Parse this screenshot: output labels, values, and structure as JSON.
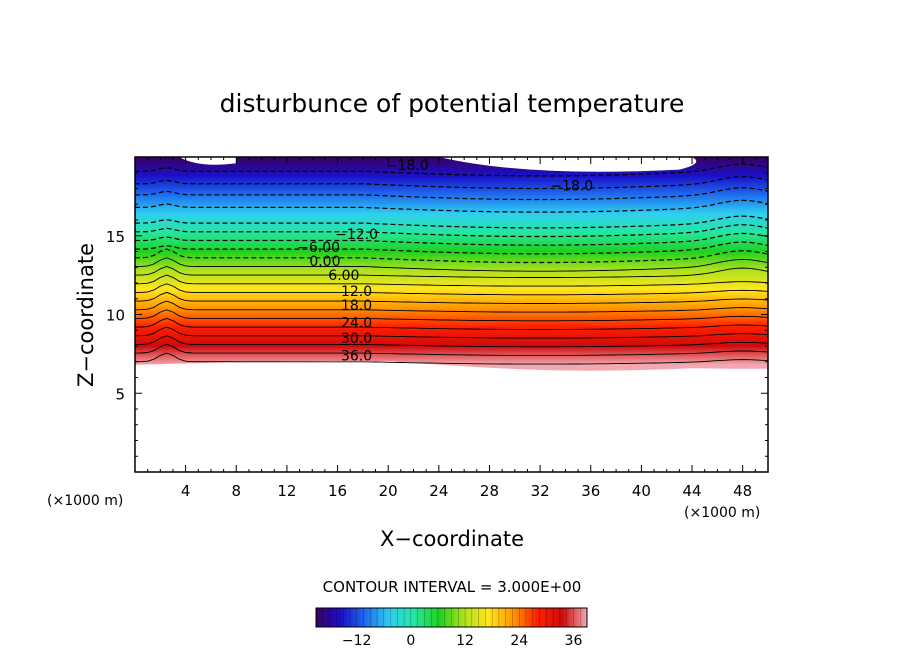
{
  "chart_data": {
    "type": "heatmap",
    "title": "disturbunce of potential temperature",
    "xlabel": "X−coordinate",
    "ylabel": "Z−coordinate",
    "x_unit_label": "(×1000 m)",
    "y_unit_label": "(×1000 m)",
    "xlim": [
      0,
      50
    ],
    "ylim": [
      0,
      20
    ],
    "x_ticks": [
      4,
      8,
      12,
      16,
      20,
      24,
      28,
      32,
      36,
      40,
      44,
      48
    ],
    "y_ticks": [
      5,
      10,
      15
    ],
    "contour_interval_text": "CONTOUR INTERVAL = 3.000E+00",
    "value_range": [
      -21,
      39
    ],
    "colorbar_ticks": [
      -12,
      0,
      12,
      24,
      36
    ],
    "colormap_stops": [
      "#3a0060",
      "#1a10c8",
      "#1e6cf0",
      "#2ecff0",
      "#25e6a0",
      "#1ed21e",
      "#aee11e",
      "#ffe61e",
      "#ff9600",
      "#ff1e00",
      "#cf0a0a",
      "#f2a8b0"
    ],
    "data_bottom_z": 6.8,
    "contour_labels": [
      {
        "text": "−18.0",
        "x": 21.5,
        "z": 19.5
      },
      {
        "text": "−18.0",
        "x": 34.5,
        "z": 18.2
      },
      {
        "text": "−12.0",
        "x": 17.5,
        "z": 15.1
      },
      {
        "text": "−6.00",
        "x": 14.5,
        "z": 14.3
      },
      {
        "text": "0.00",
        "x": 15.0,
        "z": 13.4
      },
      {
        "text": "6.00",
        "x": 16.5,
        "z": 12.5
      },
      {
        "text": "12.0",
        "x": 17.5,
        "z": 11.5
      },
      {
        "text": "18.0",
        "x": 17.5,
        "z": 10.6
      },
      {
        "text": "24.0",
        "x": 17.5,
        "z": 9.5
      },
      {
        "text": "30.0",
        "x": 17.5,
        "z": 8.5
      },
      {
        "text": "36.0",
        "x": 17.5,
        "z": 7.4
      }
    ]
  }
}
